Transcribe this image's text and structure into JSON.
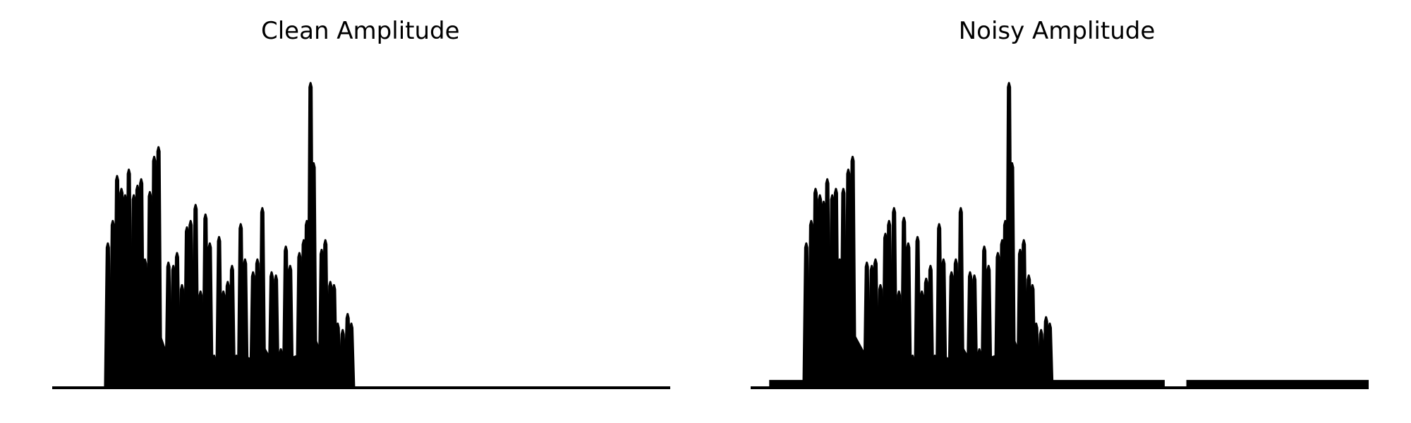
{
  "chart_data": [
    {
      "type": "area",
      "title": "Clean Amplitude",
      "axes_visible": false,
      "grid": false,
      "x_range": [
        0,
        1
      ],
      "ylim": [
        0,
        1
      ],
      "peaks": [
        {
          "x": 0.09,
          "y": 0.45
        },
        {
          "x": 0.098,
          "y": 0.52
        },
        {
          "x": 0.105,
          "y": 0.66
        },
        {
          "x": 0.112,
          "y": 0.62
        },
        {
          "x": 0.118,
          "y": 0.6
        },
        {
          "x": 0.124,
          "y": 0.68
        },
        {
          "x": 0.132,
          "y": 0.6
        },
        {
          "x": 0.138,
          "y": 0.63
        },
        {
          "x": 0.144,
          "y": 0.65
        },
        {
          "x": 0.15,
          "y": 0.4
        },
        {
          "x": 0.158,
          "y": 0.61
        },
        {
          "x": 0.165,
          "y": 0.72
        },
        {
          "x": 0.172,
          "y": 0.75
        },
        {
          "x": 0.188,
          "y": 0.39
        },
        {
          "x": 0.196,
          "y": 0.38
        },
        {
          "x": 0.202,
          "y": 0.42
        },
        {
          "x": 0.21,
          "y": 0.32
        },
        {
          "x": 0.218,
          "y": 0.5
        },
        {
          "x": 0.224,
          "y": 0.52
        },
        {
          "x": 0.232,
          "y": 0.57
        },
        {
          "x": 0.24,
          "y": 0.3
        },
        {
          "x": 0.248,
          "y": 0.54
        },
        {
          "x": 0.255,
          "y": 0.45
        },
        {
          "x": 0.262,
          "y": 0.1
        },
        {
          "x": 0.27,
          "y": 0.47
        },
        {
          "x": 0.277,
          "y": 0.3
        },
        {
          "x": 0.284,
          "y": 0.33
        },
        {
          "x": 0.291,
          "y": 0.38
        },
        {
          "x": 0.298,
          "y": 0.1
        },
        {
          "x": 0.305,
          "y": 0.51
        },
        {
          "x": 0.312,
          "y": 0.4
        },
        {
          "x": 0.325,
          "y": 0.36
        },
        {
          "x": 0.332,
          "y": 0.4
        },
        {
          "x": 0.34,
          "y": 0.56
        },
        {
          "x": 0.355,
          "y": 0.36
        },
        {
          "x": 0.362,
          "y": 0.35
        },
        {
          "x": 0.37,
          "y": 0.12
        },
        {
          "x": 0.378,
          "y": 0.44
        },
        {
          "x": 0.385,
          "y": 0.38
        },
        {
          "x": 0.4,
          "y": 0.42
        },
        {
          "x": 0.407,
          "y": 0.46
        },
        {
          "x": 0.412,
          "y": 0.52
        },
        {
          "x": 0.418,
          "y": 0.95
        },
        {
          "x": 0.423,
          "y": 0.7
        },
        {
          "x": 0.436,
          "y": 0.43
        },
        {
          "x": 0.442,
          "y": 0.46
        },
        {
          "x": 0.45,
          "y": 0.33
        },
        {
          "x": 0.456,
          "y": 0.32
        },
        {
          "x": 0.462,
          "y": 0.2
        },
        {
          "x": 0.47,
          "y": 0.18
        },
        {
          "x": 0.478,
          "y": 0.23
        },
        {
          "x": 0.484,
          "y": 0.2
        }
      ],
      "signal_span": [
        0.088,
        0.49
      ],
      "noise_floor": 0.0
    },
    {
      "type": "area",
      "title": "Noisy Amplitude",
      "axes_visible": false,
      "grid": false,
      "x_range": [
        0,
        1
      ],
      "ylim": [
        0,
        1
      ],
      "peaks": [
        {
          "x": 0.09,
          "y": 0.45
        },
        {
          "x": 0.098,
          "y": 0.52
        },
        {
          "x": 0.105,
          "y": 0.62
        },
        {
          "x": 0.112,
          "y": 0.6
        },
        {
          "x": 0.118,
          "y": 0.58
        },
        {
          "x": 0.124,
          "y": 0.65
        },
        {
          "x": 0.132,
          "y": 0.6
        },
        {
          "x": 0.138,
          "y": 0.62
        },
        {
          "x": 0.144,
          "y": 0.4
        },
        {
          "x": 0.15,
          "y": 0.62
        },
        {
          "x": 0.158,
          "y": 0.68
        },
        {
          "x": 0.165,
          "y": 0.72
        },
        {
          "x": 0.188,
          "y": 0.39
        },
        {
          "x": 0.196,
          "y": 0.38
        },
        {
          "x": 0.202,
          "y": 0.4
        },
        {
          "x": 0.21,
          "y": 0.32
        },
        {
          "x": 0.218,
          "y": 0.48
        },
        {
          "x": 0.224,
          "y": 0.52
        },
        {
          "x": 0.232,
          "y": 0.56
        },
        {
          "x": 0.24,
          "y": 0.3
        },
        {
          "x": 0.248,
          "y": 0.53
        },
        {
          "x": 0.255,
          "y": 0.45
        },
        {
          "x": 0.262,
          "y": 0.1
        },
        {
          "x": 0.27,
          "y": 0.47
        },
        {
          "x": 0.277,
          "y": 0.3
        },
        {
          "x": 0.284,
          "y": 0.34
        },
        {
          "x": 0.291,
          "y": 0.38
        },
        {
          "x": 0.298,
          "y": 0.1
        },
        {
          "x": 0.305,
          "y": 0.51
        },
        {
          "x": 0.312,
          "y": 0.4
        },
        {
          "x": 0.325,
          "y": 0.36
        },
        {
          "x": 0.332,
          "y": 0.4
        },
        {
          "x": 0.34,
          "y": 0.56
        },
        {
          "x": 0.355,
          "y": 0.36
        },
        {
          "x": 0.362,
          "y": 0.35
        },
        {
          "x": 0.37,
          "y": 0.12
        },
        {
          "x": 0.378,
          "y": 0.44
        },
        {
          "x": 0.385,
          "y": 0.38
        },
        {
          "x": 0.4,
          "y": 0.42
        },
        {
          "x": 0.407,
          "y": 0.46
        },
        {
          "x": 0.412,
          "y": 0.52
        },
        {
          "x": 0.418,
          "y": 0.95
        },
        {
          "x": 0.423,
          "y": 0.7
        },
        {
          "x": 0.436,
          "y": 0.43
        },
        {
          "x": 0.442,
          "y": 0.46
        },
        {
          "x": 0.45,
          "y": 0.35
        },
        {
          "x": 0.456,
          "y": 0.32
        },
        {
          "x": 0.462,
          "y": 0.2
        },
        {
          "x": 0.47,
          "y": 0.18
        },
        {
          "x": 0.478,
          "y": 0.22
        },
        {
          "x": 0.484,
          "y": 0.2
        }
      ],
      "signal_span": [
        0.088,
        0.49
      ],
      "noise_floor": 0.02,
      "noise_gap": [
        0.67,
        0.705
      ]
    }
  ]
}
